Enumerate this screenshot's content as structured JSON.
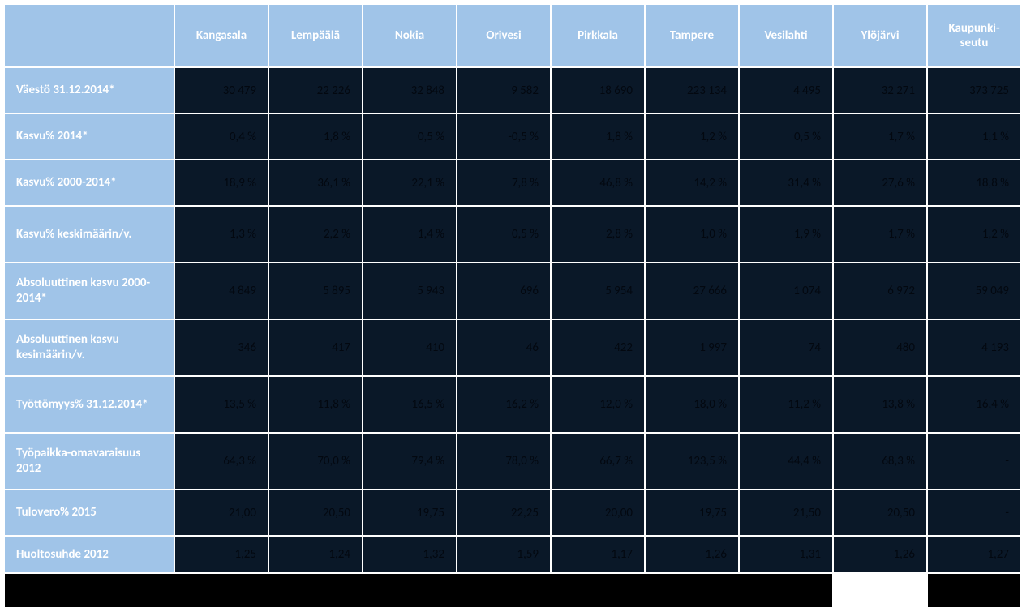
{
  "table": {
    "type": "table",
    "columns": [
      "Kangasala",
      "Lempäälä",
      "Nokia",
      "Orivesi",
      "Pirkkala",
      "Tampere",
      "Vesilahti",
      "Ylöjärvi",
      "Kaupunki-\nseutu"
    ],
    "row_labels": [
      "Väestö 31.12.2014*",
      "Kasvu% 2014*",
      "Kasvu% 2000-2014*",
      "Kasvu% keskimäärin/v.",
      "Absoluuttinen kasvu 2000-2014*",
      "Absoluuttinen kasvu kesimäärin/v.",
      "Työttömyys% 31.12.2014*",
      "Työpaikka-omavaraisuus 2012",
      "Tulovero% 2015",
      "Huoltosuhde 2012"
    ],
    "rows": [
      [
        "30 479",
        "22 226",
        "32 848",
        "9 582",
        "18 690",
        "223 134",
        "4 495",
        "32 271",
        "373 725"
      ],
      [
        "0,4 %",
        "1,8 %",
        "0,5 %",
        "-0,5 %",
        "1,8 %",
        "1,2 %",
        "0,5 %",
        "1,7 %",
        "1,1 %"
      ],
      [
        "18,9 %",
        "36,1 %",
        "22,1 %",
        "7,8 %",
        "46,8 %",
        "14,2 %",
        "31,4 %",
        "27,6 %",
        "18,8 %"
      ],
      [
        "1,3 %",
        "2,2 %",
        "1,4 %",
        "0,5 %",
        "2,8 %",
        "1,0 %",
        "1,9 %",
        "1,7 %",
        "1,2 %"
      ],
      [
        "4 849",
        "5 895",
        "5 943",
        "696",
        "5 954",
        "27 666",
        "1 074",
        "6 972",
        "59 049"
      ],
      [
        "346",
        "417",
        "410",
        "46",
        "422",
        "1 997",
        "74",
        "480",
        "4 193"
      ],
      [
        "13,5 %",
        "11,8 %",
        "16,5 %",
        "16,2 %",
        "12,0 %",
        "18,0 %",
        "11,2 %",
        "13,8 %",
        "16,4 %"
      ],
      [
        "64,3 %",
        "70,0 %",
        "79,4 %",
        "78,0 %",
        "66,7 %",
        "123,5 %",
        "44,4 %",
        "68,3 %",
        "-"
      ],
      [
        "21,00",
        "20,50",
        "19,75",
        "22,25",
        "20,00",
        "19,75",
        "21,50",
        "20,50",
        "-"
      ],
      [
        "1,25",
        "1,24",
        "1,32",
        "1,59",
        "1,17",
        "1,26",
        "1,31",
        "1,26",
        "1,27"
      ]
    ],
    "row_heights": [
      "data-row",
      "data-row",
      "data-row",
      "tall-row",
      "tall-row",
      "tall-row",
      "tall-row",
      "tall-row",
      "data-row",
      "short-row"
    ],
    "header_bg": "#a0c4e8",
    "header_text_color": "#ffffff",
    "cell_bg": "#0a1828",
    "cell_text_color": "#030810",
    "footer_bg": "#000000",
    "font_family": "Calibri",
    "header_fontsize": 15,
    "cell_fontsize": 15
  }
}
